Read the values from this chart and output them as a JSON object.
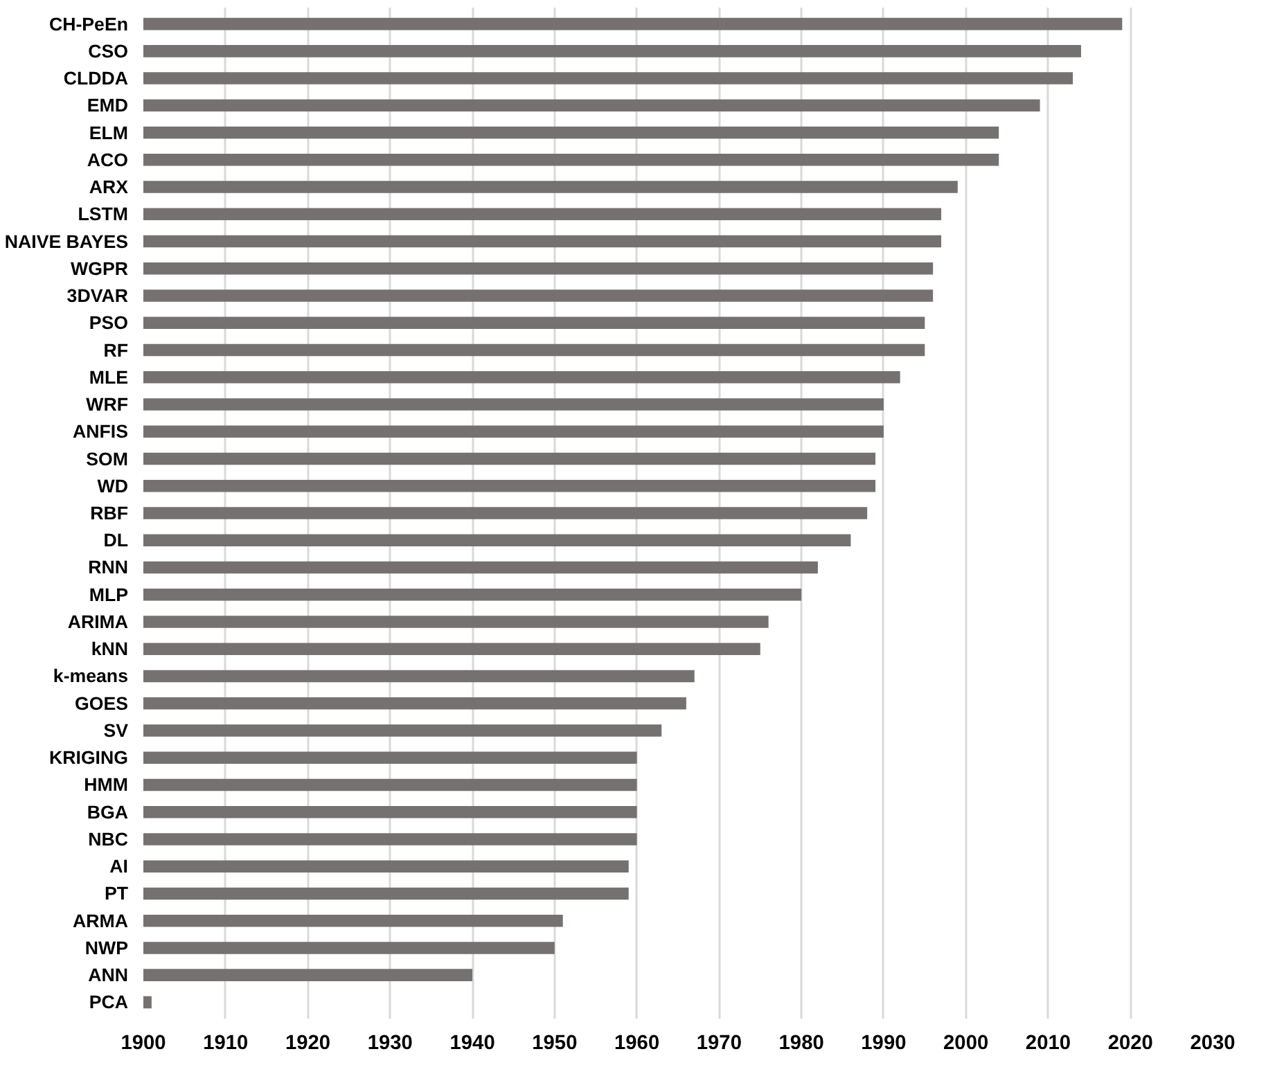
{
  "chart_data": {
    "type": "bar",
    "orientation": "horizontal",
    "color": "#767171",
    "categories": [
      "CH-PeEn",
      "CSO",
      "CLDDA",
      "EMD",
      "ELM",
      "ACO",
      "ARX",
      "LSTM",
      "NAIVE BAYES",
      "WGPR",
      "3DVAR",
      "PSO",
      "RF",
      "MLE",
      "WRF",
      "ANFIS",
      "SOM",
      "WD",
      "RBF",
      "DL",
      "RNN",
      "MLP",
      "ARIMA",
      "kNN",
      "k-means",
      "GOES",
      "SV",
      "KRIGING",
      "HMM",
      "BGA",
      "NBC",
      "AI",
      "PT",
      "ARMA",
      "NWP",
      "ANN",
      "PCA"
    ],
    "values": [
      2019,
      2014,
      2013,
      2009,
      2004,
      2004,
      1999,
      1997,
      1997,
      1996,
      1996,
      1995,
      1995,
      1992,
      1990,
      1990,
      1989,
      1989,
      1988,
      1986,
      1982,
      1980,
      1976,
      1975,
      1967,
      1966,
      1963,
      1960,
      1960,
      1960,
      1960,
      1959,
      1959,
      1951,
      1950,
      1940,
      1901
    ],
    "xlim": [
      1900,
      2030
    ],
    "xticks": [
      1900,
      1910,
      1920,
      1930,
      1940,
      1950,
      1960,
      1970,
      1980,
      1990,
      2000,
      2010,
      2020,
      2030
    ],
    "grid": "x"
  }
}
